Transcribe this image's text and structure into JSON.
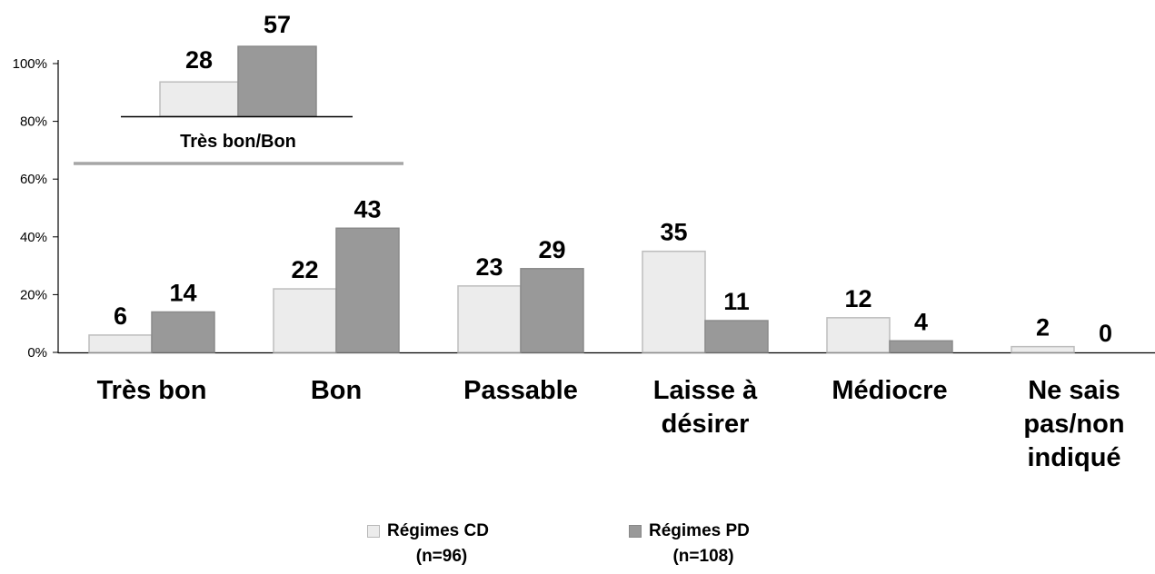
{
  "chart_data": [
    {
      "type": "bar",
      "categories": [
        "Très bon",
        "Bon",
        "Passable",
        "Laisse à désirer",
        "Médiocre",
        "Ne sais pas/non indiqué"
      ],
      "category_lines": [
        [
          "Très bon"
        ],
        [
          "Bon"
        ],
        [
          "Passable"
        ],
        [
          "Laisse à",
          "désirer"
        ],
        [
          "Médiocre"
        ],
        [
          "Ne sais",
          "pas/non",
          "indiqué"
        ]
      ],
      "series": [
        {
          "name": "Régimes CD",
          "sample": "(n=96)",
          "color": "#ececec",
          "values": [
            6,
            22,
            23,
            35,
            12,
            2
          ]
        },
        {
          "name": "Régimes PD",
          "sample": "(n=108)",
          "color": "#999999",
          "values": [
            14,
            43,
            29,
            11,
            4,
            0
          ]
        }
      ],
      "y_ticks": [
        "0%",
        "20%",
        "40%",
        "60%",
        "80%",
        "100%"
      ],
      "ylim": [
        0,
        100
      ],
      "legend": "bottom-center"
    },
    {
      "type": "bar",
      "categories": [
        "Très bon/Bon"
      ],
      "series": [
        {
          "name": "Régimes CD",
          "values": [
            28
          ]
        },
        {
          "name": "Régimes PD",
          "values": [
            57
          ]
        }
      ]
    }
  ]
}
